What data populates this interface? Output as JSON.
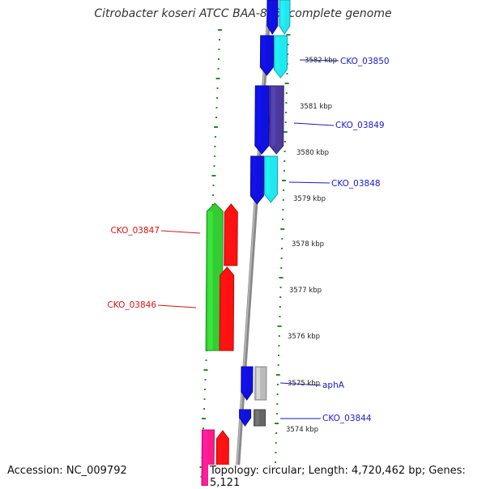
{
  "title": "Citrobacter koseri ATCC BAA-895, complete genome",
  "footer": {
    "accession": "Accession: NC_009792",
    "topology": "Topology: circular; Length: 4,720,462 bp; Genes: 5,121"
  },
  "colors": {
    "forward_label": "#1a1acc",
    "reverse_label": "#dd1111",
    "backbone": "#888888",
    "tick": "#2a8a2a"
  },
  "kbp_labels": [
    "3582 kbp",
    "3581 kbp",
    "3580 kbp",
    "3579 kbp",
    "3578 kbp",
    "3577 kbp",
    "3576 kbp",
    "3575 kbp",
    "3574 kbp"
  ],
  "gene_labels": [
    {
      "text": "CKO_03850",
      "strand": "forward"
    },
    {
      "text": "CKO_03849",
      "strand": "forward"
    },
    {
      "text": "CKO_03848",
      "strand": "forward"
    },
    {
      "text": "CKO_03847",
      "strand": "reverse"
    },
    {
      "text": "CKO_03846",
      "strand": "reverse"
    },
    {
      "text": "aphA",
      "strand": "forward"
    },
    {
      "text": "CKO_03844",
      "strand": "forward"
    }
  ],
  "genes": [
    {
      "name": "forward-gene-top-inner",
      "strand": "forward",
      "track": "inner",
      "color": "#1010e0"
    },
    {
      "name": "forward-gene-top-outer",
      "strand": "forward",
      "track": "outer",
      "color": "#20e8f0"
    },
    {
      "name": "forward-gene-cko03850-inner",
      "strand": "forward",
      "track": "inner",
      "color": "#1010e0"
    },
    {
      "name": "forward-gene-cko03850-outer",
      "strand": "forward",
      "track": "outer",
      "color": "#20e8f0"
    },
    {
      "name": "forward-gene-cko03849-inner",
      "strand": "forward",
      "track": "inner",
      "color": "#1010e0"
    },
    {
      "name": "forward-gene-cko03849-outer",
      "strand": "forward",
      "track": "outer",
      "color": "#4b3a9c"
    },
    {
      "name": "forward-gene-cko03848-inner",
      "strand": "forward",
      "track": "inner",
      "color": "#1010e0"
    },
    {
      "name": "forward-gene-cko03848-outer",
      "strand": "forward",
      "track": "outer",
      "color": "#20e8f0"
    },
    {
      "name": "forward-gene-apha-inner",
      "strand": "forward",
      "track": "inner",
      "color": "#1010e0"
    },
    {
      "name": "forward-gene-apha-outer",
      "strand": "forward",
      "track": "outer",
      "color": "#bbbbbb"
    },
    {
      "name": "forward-gene-cko03844-inner",
      "strand": "forward",
      "track": "inner",
      "color": "#1010e0"
    },
    {
      "name": "forward-gene-cko03844-outer",
      "strand": "forward",
      "track": "outer",
      "color": "#666666"
    },
    {
      "name": "reverse-gene-cko03847-outer",
      "strand": "reverse",
      "track": "outer",
      "color": "#33cc33"
    },
    {
      "name": "reverse-gene-cko03847-inner",
      "strand": "reverse",
      "track": "inner",
      "color": "#ff1111"
    },
    {
      "name": "reverse-gene-cko03846-inner",
      "strand": "reverse",
      "track": "inner",
      "color": "#ff1111"
    },
    {
      "name": "reverse-gene-bottom-outer",
      "strand": "reverse",
      "track": "outer",
      "color": "#ff1a8c"
    },
    {
      "name": "reverse-gene-bottom-inner",
      "strand": "reverse",
      "track": "inner",
      "color": "#ff1111"
    }
  ]
}
